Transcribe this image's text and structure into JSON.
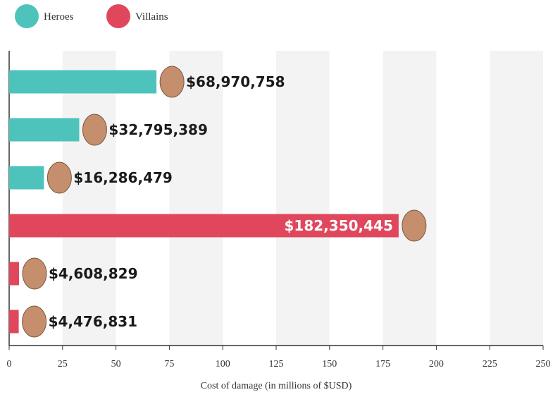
{
  "chart_data": {
    "type": "barh",
    "x_label": "Cost of damage (in millions of $USD)",
    "categories": [
      null,
      null,
      null,
      null,
      null,
      null
    ],
    "series": [
      {
        "name": "Heroes",
        "color": "#4dc3bc",
        "values": [
          68.970758,
          32.795389,
          16.286479,
          null,
          null,
          null
        ],
        "value_labels": [
          "$68,970,758",
          "$32,795,389",
          "$16,286,479",
          null,
          null,
          null
        ]
      },
      {
        "name": "Villains",
        "color": "#e0475d",
        "values": [
          null,
          null,
          null,
          182.350445,
          4.608829,
          4.476831
        ],
        "value_labels": [
          null,
          null,
          null,
          "$182,350,445",
          "$4,608,829",
          "$4,476,831"
        ]
      }
    ],
    "xlim": [
      0,
      250
    ],
    "xticks": [
      0,
      25,
      50,
      75,
      100,
      125,
      150,
      175,
      200,
      225,
      250
    ],
    "legend": "top-left"
  }
}
